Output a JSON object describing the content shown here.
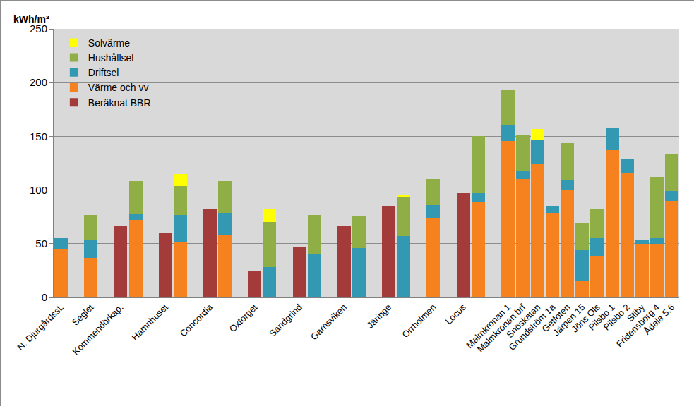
{
  "chart_data": {
    "type": "bar",
    "ylabel": "kWh/m²",
    "categories": [
      "N. Djurgårdsst.",
      null,
      "Seglet",
      null,
      "Kommendörkap.",
      null,
      null,
      "Hamnhuset",
      null,
      null,
      "Concordia",
      null,
      null,
      "Oxtorget",
      null,
      null,
      "Sandgrind",
      null,
      null,
      "Garnsviken",
      null,
      null,
      "Järinge",
      null,
      null,
      "Orrholmen",
      null,
      "Locus",
      null,
      null,
      "Malmkronan 1",
      "Malmkronan brf",
      "Snöskatan",
      "Grundström 1a",
      "Getfoten",
      "Järpen 15",
      "Jöns Ols",
      "Pilsbo 1",
      "Pilsbo 2",
      "Stiby",
      "Fridensborg 4",
      "Ådala 5,6"
    ],
    "series": [
      {
        "name": "Solvärme",
        "color": "#ffff00",
        "values": [
          null,
          null,
          null,
          null,
          null,
          null,
          null,
          null,
          11,
          null,
          null,
          null,
          null,
          null,
          12,
          null,
          null,
          null,
          null,
          null,
          null,
          null,
          null,
          2,
          null,
          null,
          null,
          null,
          null,
          null,
          null,
          null,
          10,
          null,
          null,
          null,
          null,
          null,
          null,
          null,
          null,
          null
        ]
      },
      {
        "name": "Hushållsel",
        "color": "#8fae46",
        "values": [
          null,
          null,
          24,
          null,
          null,
          30,
          null,
          null,
          27,
          null,
          null,
          29,
          null,
          null,
          42,
          null,
          null,
          37,
          null,
          null,
          30,
          null,
          null,
          36,
          null,
          24,
          null,
          null,
          53,
          null,
          32,
          33,
          null,
          null,
          35,
          25,
          28,
          null,
          null,
          null,
          56,
          34
        ]
      },
      {
        "name": "Driftsel",
        "color": "#3399b3",
        "values": [
          10,
          null,
          16,
          null,
          null,
          6,
          null,
          null,
          25,
          null,
          null,
          21,
          null,
          null,
          28,
          null,
          null,
          40,
          null,
          null,
          46,
          null,
          null,
          57,
          null,
          12,
          null,
          null,
          8,
          null,
          15,
          8,
          23,
          6,
          9,
          29,
          16,
          21,
          13,
          4,
          6,
          9
        ]
      },
      {
        "name": "Värme och vv",
        "color": "#f5821f",
        "values": [
          45,
          null,
          37,
          null,
          null,
          72,
          null,
          null,
          52,
          null,
          null,
          58,
          null,
          null,
          null,
          null,
          null,
          null,
          null,
          null,
          null,
          null,
          null,
          null,
          null,
          74,
          null,
          null,
          89,
          null,
          146,
          110,
          124,
          79,
          100,
          15,
          39,
          137,
          116,
          50,
          50,
          90
        ]
      },
      {
        "name": "Beräknat BBR",
        "color": "#a33b3b",
        "values": [
          null,
          null,
          null,
          null,
          66,
          null,
          null,
          60,
          null,
          null,
          82,
          null,
          null,
          25,
          null,
          null,
          47,
          null,
          null,
          66,
          null,
          null,
          85,
          null,
          null,
          null,
          null,
          97,
          null,
          null,
          null,
          null,
          null,
          null,
          null,
          null,
          null,
          null,
          null,
          null,
          null,
          null
        ]
      }
    ],
    "ylim": [
      0,
      250
    ],
    "yticks": [
      0,
      50,
      100,
      150,
      200,
      250
    ],
    "grid": true,
    "stacked": true,
    "legend": "top-left"
  }
}
